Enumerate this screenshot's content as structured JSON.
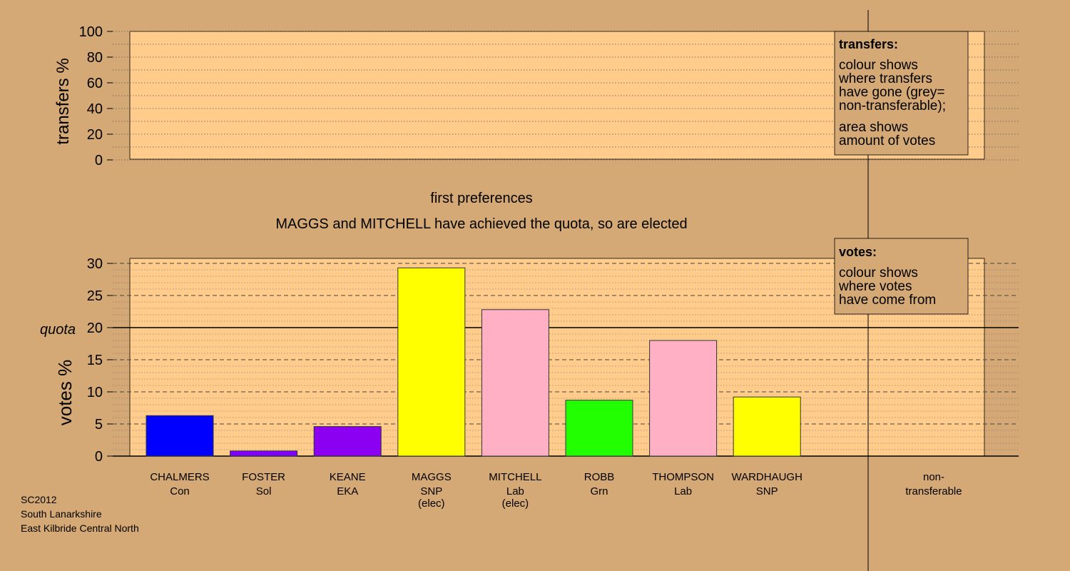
{
  "colors": {
    "background": "#D4A976",
    "panel": "#FFCC8C",
    "Con": "#0000FF",
    "Sol": "#7F00FF",
    "EKA": "#8B00F0",
    "SNP": "#FFFF00",
    "Lab": "#FFB0C4",
    "Grn": "#22FF00",
    "legend_box": "#D4A976"
  },
  "header": {
    "stage": "first preferences",
    "message": "MAGGS and MITCHELL have achieved the quota, so are elected"
  },
  "transfers_legend": {
    "title": "transfers:",
    "lines1": [
      "colour shows",
      "where transfers",
      "have gone (grey=",
      "non-transferable);"
    ],
    "lines2": [
      "area shows",
      "amount of votes"
    ]
  },
  "votes_legend": {
    "title": "votes:",
    "lines": [
      "colour shows",
      "where votes",
      "have come from"
    ]
  },
  "footer": {
    "lines": [
      "SC2012",
      "South Lanarkshire",
      "East Kilbride Central North"
    ]
  },
  "chart_data": [
    {
      "type": "bar",
      "ylabel": "transfers %",
      "ylim": [
        0,
        100
      ],
      "yticks": [
        0,
        20,
        40,
        60,
        80,
        100
      ],
      "values": []
    },
    {
      "type": "bar",
      "ylabel": "votes %",
      "ylim": [
        0,
        30
      ],
      "yticks": [
        0,
        5,
        10,
        15,
        20,
        25,
        30
      ],
      "quota": 20,
      "quota_label": "quota",
      "categories": [
        {
          "name": "CHALMERS",
          "party": "Con",
          "note": "",
          "value": 6.3,
          "color": "#0000FF"
        },
        {
          "name": "FOSTER",
          "party": "Sol",
          "note": "",
          "value": 0.8,
          "color": "#7F00FF"
        },
        {
          "name": "KEANE",
          "party": "EKA",
          "note": "",
          "value": 4.6,
          "color": "#8B00F0"
        },
        {
          "name": "MAGGS",
          "party": "SNP",
          "note": "(elec)",
          "value": 29.3,
          "color": "#FFFF00"
        },
        {
          "name": "MITCHELL",
          "party": "Lab",
          "note": "(elec)",
          "value": 22.8,
          "color": "#FFB0C4"
        },
        {
          "name": "ROBB",
          "party": "Grn",
          "note": "",
          "value": 8.7,
          "color": "#22FF00"
        },
        {
          "name": "THOMPSON",
          "party": "Lab",
          "note": "",
          "value": 18.0,
          "color": "#FFB0C4"
        },
        {
          "name": "WARDHAUGH",
          "party": "SNP",
          "note": "",
          "value": 9.2,
          "color": "#FFFF00"
        }
      ],
      "extra_category": {
        "line1": "non-",
        "line2": "transferable",
        "value": 0
      }
    }
  ]
}
